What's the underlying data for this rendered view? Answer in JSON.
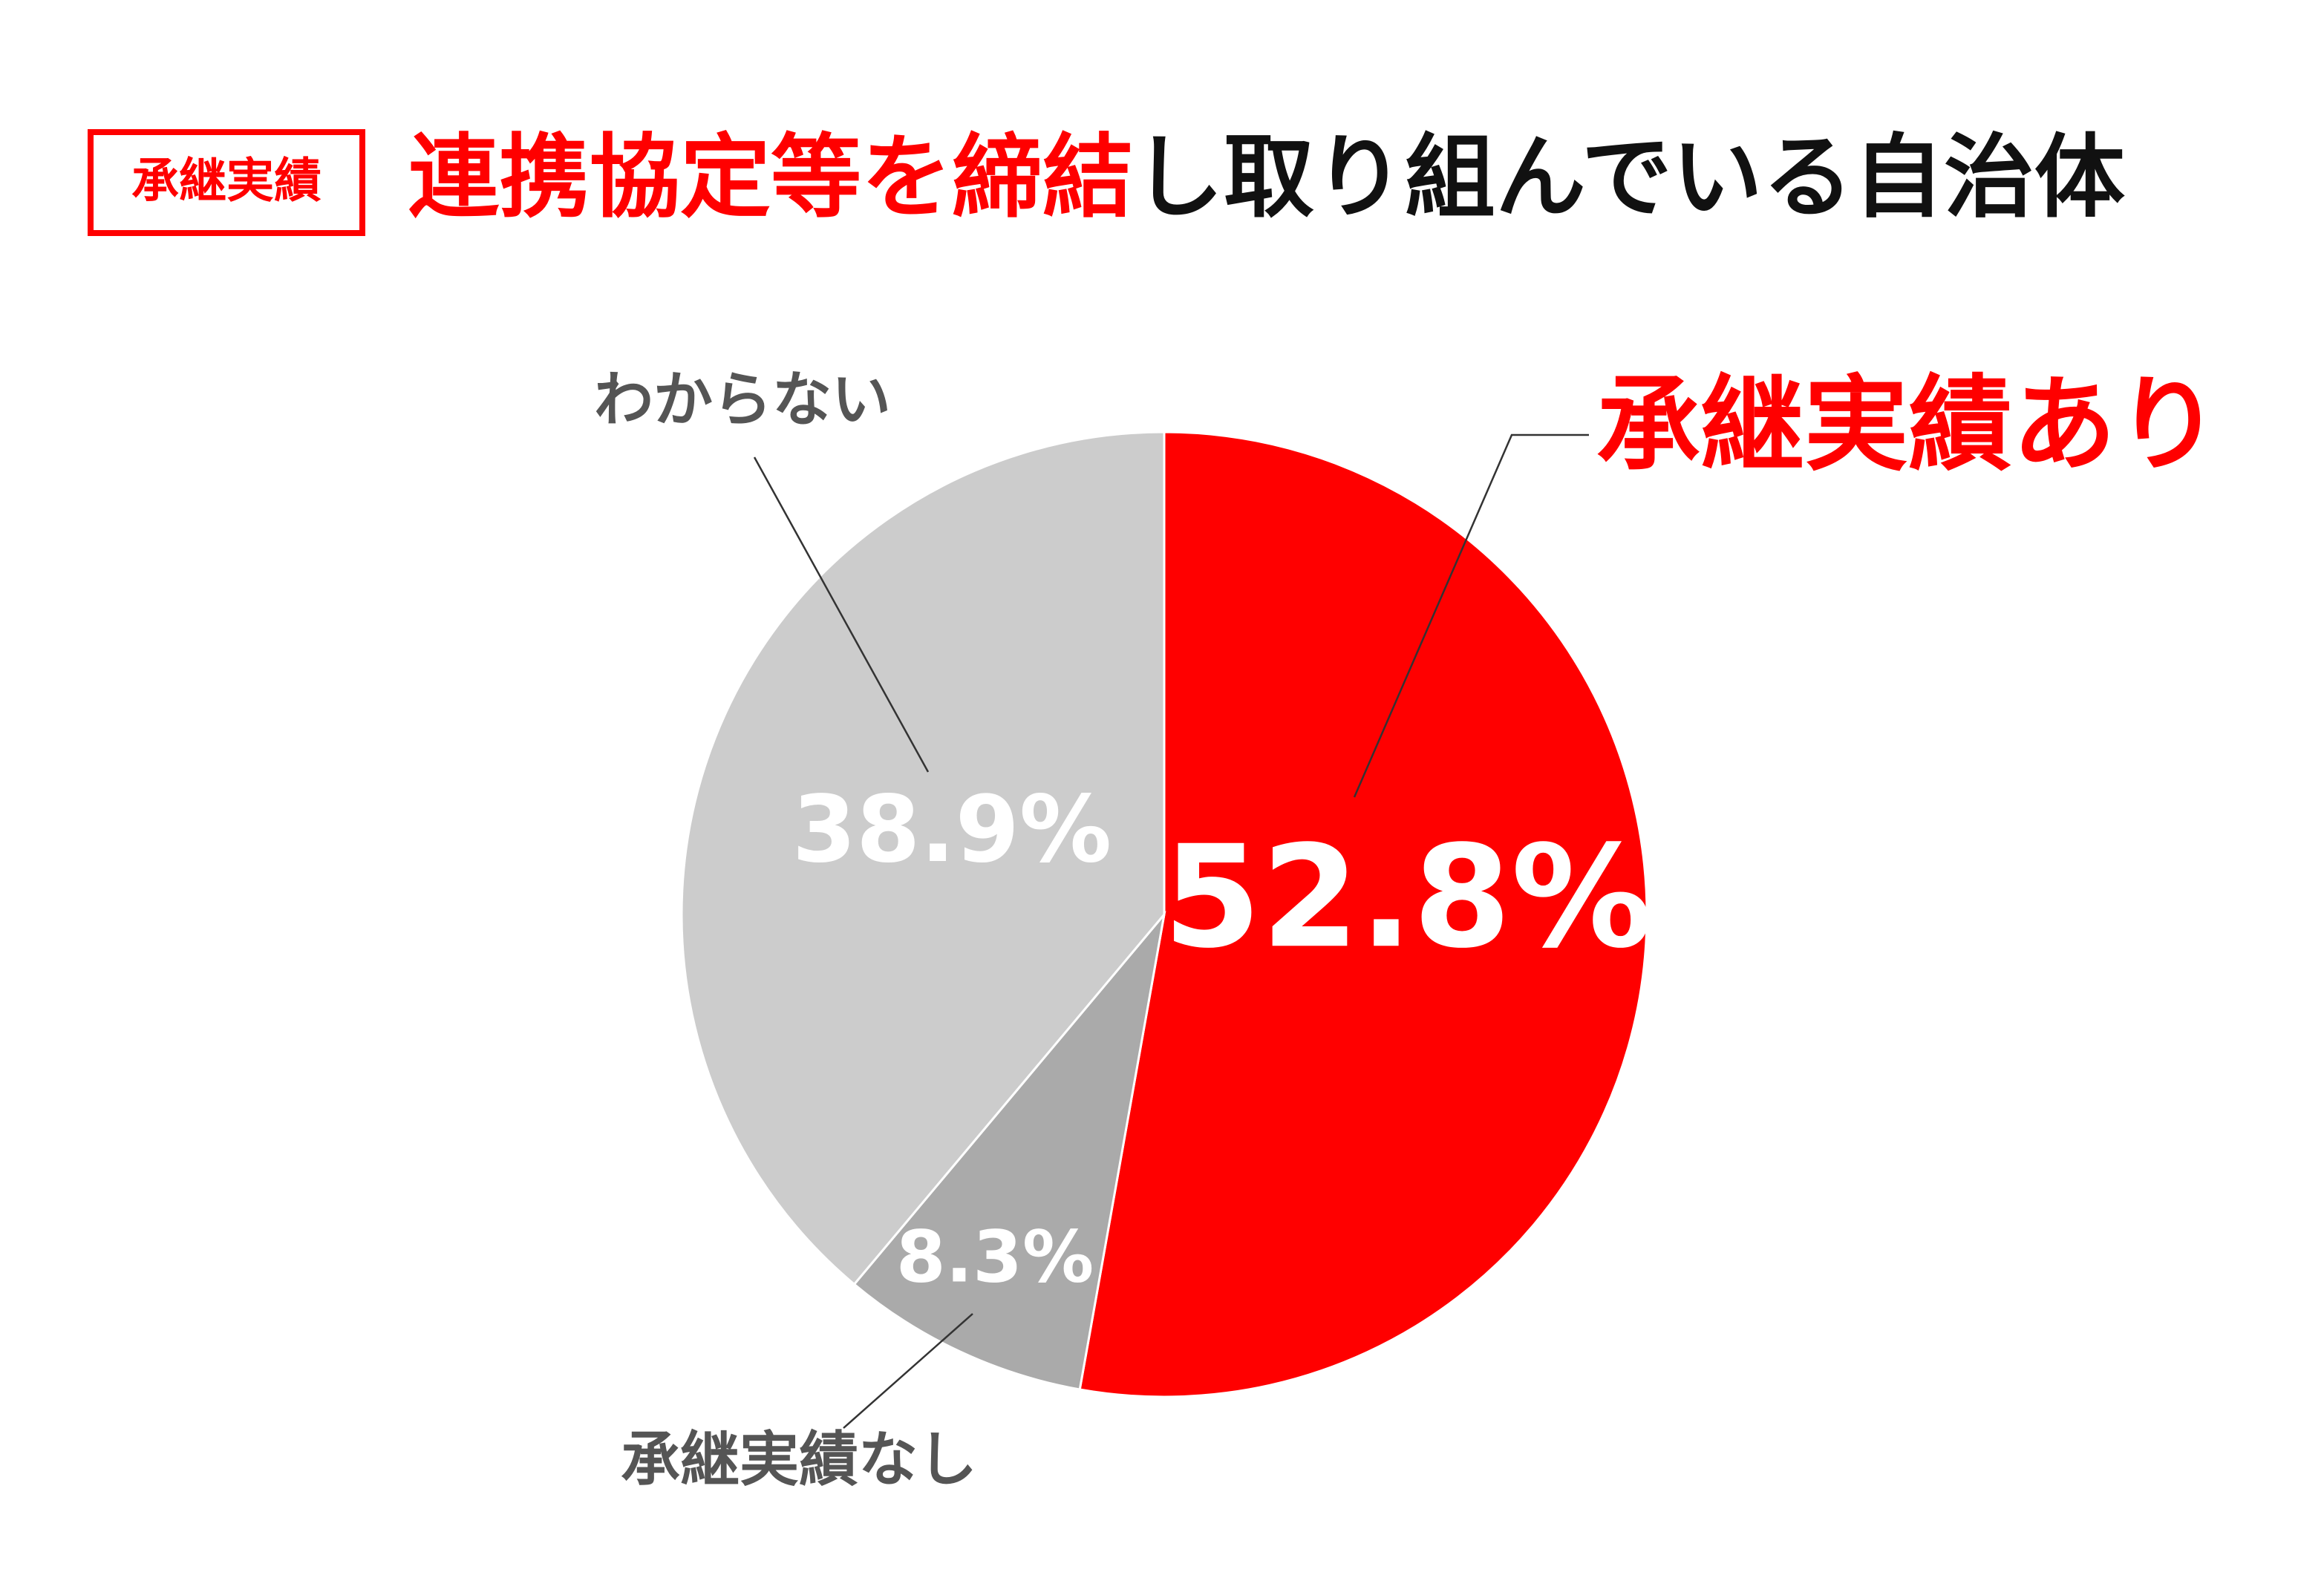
{
  "badge": "承継実績",
  "chart_data": {
    "type": "pie",
    "title_parts": [
      "連携協定等を締結",
      "し取り組んでいる自治体"
    ],
    "categories": [
      "承継実績あり",
      "承継実績なし",
      "わからない"
    ],
    "values": [
      52.8,
      8.3,
      38.9
    ],
    "value_labels": [
      "52.8%",
      "8.3%",
      "38.9%"
    ],
    "colors": [
      "#ff0000",
      "#aaaaaa",
      "#cccccc"
    ]
  }
}
